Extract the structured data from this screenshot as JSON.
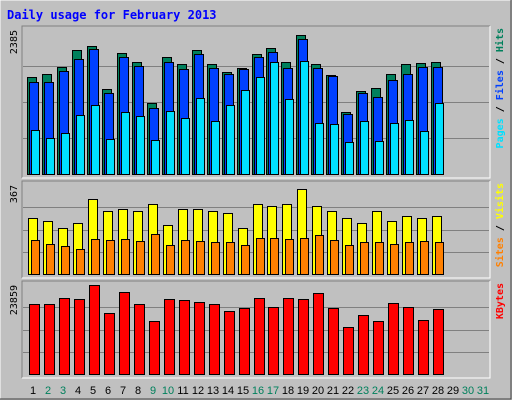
{
  "colors": {
    "background": "#c0c0c0",
    "panel": "#c0c0c0",
    "title": "#0000ff",
    "hits": "#00805c",
    "files": "#0040ff",
    "pages": "#00e0ff",
    "visits": "#ffff00",
    "sites": "#ff8000",
    "kbytes": "#ff0000",
    "weekend_day": "#00805c",
    "weekday": "#000000"
  },
  "chart_data": {
    "type": "bar",
    "title": "Daily usage for February 2013",
    "categories": [
      "1",
      "2",
      "3",
      "4",
      "5",
      "6",
      "7",
      "8",
      "9",
      "10",
      "11",
      "12",
      "13",
      "14",
      "15",
      "16",
      "17",
      "18",
      "19",
      "20",
      "21",
      "22",
      "23",
      "24",
      "25",
      "26",
      "27",
      "28",
      "29",
      "30",
      "31"
    ],
    "weekend_days": [
      "2",
      "3",
      "9",
      "10",
      "16",
      "17",
      "23",
      "24",
      "30",
      "31"
    ],
    "panels": [
      {
        "name": "top",
        "ymax_label": "2385",
        "ymax": 2385,
        "legend": [
          "Pages",
          "Files",
          "Hits"
        ],
        "series": [
          {
            "name": "Hits",
            "values": [
              1610,
              1650,
              1780,
              2050,
              2120,
              1400,
              2000,
              1850,
              1170,
              1930,
              1830,
              2060,
              1820,
              1690,
              1760,
              1990,
              2090,
              1850,
              2300,
              1830,
              1640,
              1020,
              1380,
              1420,
              1650,
              1830,
              1840,
              1850,
              null,
              null,
              null
            ]
          },
          {
            "name": "Files",
            "values": [
              1530,
              1530,
              1700,
              1900,
              2070,
              1340,
              1940,
              1790,
              1100,
              1850,
              1740,
              1980,
              1760,
              1650,
              1740,
              1930,
              2020,
              1750,
              2240,
              1760,
              1620,
              1000,
              1340,
              1280,
              1560,
              1660,
              1770,
              1780,
              null,
              null,
              null
            ]
          },
          {
            "name": "Pages",
            "values": [
              730,
              600,
              680,
              980,
              1140,
              580,
              1020,
              960,
              560,
              1050,
              920,
              1260,
              880,
              1150,
              1390,
              1600,
              1860,
              1250,
              1870,
              850,
              820,
              530,
              880,
              540,
              850,
              900,
              720,
              1180,
              null,
              null,
              null
            ]
          }
        ]
      },
      {
        "name": "middle",
        "ymax_label": "367",
        "ymax": 367,
        "legend": [
          "Sites",
          "Visits"
        ],
        "series": [
          {
            "name": "Visits",
            "values": [
              230,
              220,
              190,
              210,
              310,
              260,
              270,
              260,
              290,
              200,
              270,
              270,
              260,
              250,
              190,
              290,
              280,
              290,
              350,
              280,
              260,
              230,
              210,
              260,
              220,
              240,
              230,
              240,
              null,
              null,
              null
            ]
          },
          {
            "name": "Sites",
            "values": [
              140,
              125,
              115,
              105,
              145,
              140,
              145,
              135,
              165,
              120,
              140,
              135,
              130,
              130,
              120,
              150,
              150,
              145,
              150,
              160,
              140,
              120,
              130,
              130,
              125,
              130,
              135,
              130,
              null,
              null,
              null
            ]
          }
        ]
      },
      {
        "name": "bottom",
        "ymax_label": "23859",
        "ymax": 23859,
        "legend": [
          "KBytes"
        ],
        "series": [
          {
            "name": "KBytes",
            "values": [
              18800,
              18700,
              20500,
              20200,
              23859,
              16300,
              22100,
              18800,
              14300,
              20000,
              19900,
              19400,
              18700,
              16800,
              17800,
              20300,
              18000,
              20400,
              20100,
              21700,
              17800,
              12500,
              15900,
              14300,
              18900,
              17900,
              14600,
              17500,
              null,
              null,
              null
            ]
          }
        ]
      }
    ]
  }
}
